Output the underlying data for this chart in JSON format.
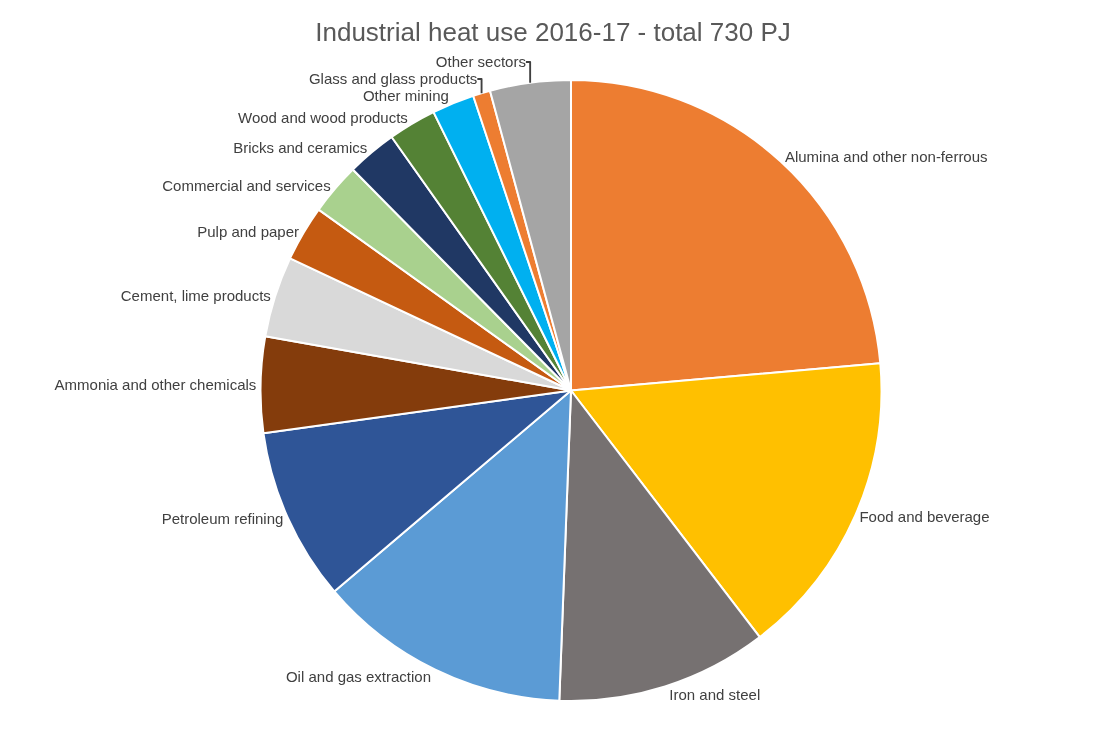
{
  "chart_data": {
    "type": "pie",
    "title": "Industrial heat use 2016-17 - total 730 PJ",
    "categories": [
      "Alumina and other non-ferrous",
      "Food and beverage",
      "Iron and steel",
      "Oil and gas extraction",
      "Petroleum refining",
      "Ammonia and other chemicals",
      "Cement, lime products",
      "Pulp and paper",
      "Commercial and services",
      "Bricks and ceramics",
      "Wood and wood products",
      "Other mining",
      "Glass and glass products",
      "Other sectors"
    ],
    "values": [
      23.6,
      16,
      11,
      13.2,
      9,
      5,
      4.2,
      2.9,
      2.7,
      2.6,
      2.5,
      2.2,
      0.9,
      4.2
    ],
    "colors": [
      "#ed7d31",
      "#ffc000",
      "#767171",
      "#5b9bd5",
      "#2f5597",
      "#843c0c",
      "#d9d9d9",
      "#c55a11",
      "#a9d18e",
      "#203864",
      "#548235",
      "#00b0f0",
      "#ed7d31",
      "#a5a5a5"
    ],
    "legend": false
  }
}
